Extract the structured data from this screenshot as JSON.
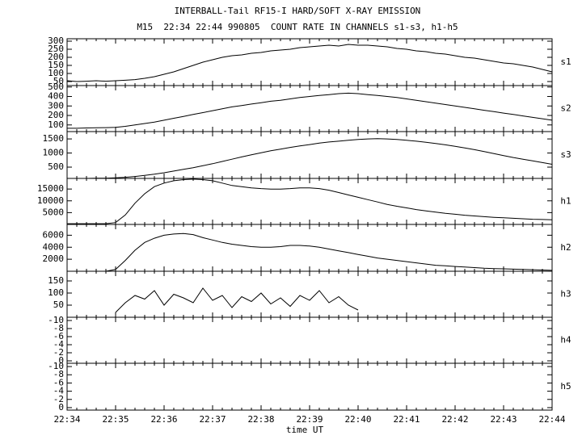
{
  "title": "INTERBALL-Tail RF15-I HARD/SOFT X-RAY EMISSION",
  "subtitle": "M15  22:34 22:44 990805  COUNT RATE IN CHANNELS s1-s3, h1-h5",
  "xlabel": "time UT",
  "categories": [
    "22:34",
    null,
    null,
    null,
    null,
    "22:35",
    null,
    null,
    null,
    null,
    "22:36",
    null,
    null,
    null,
    null,
    "22:37",
    null,
    null,
    null,
    null,
    "22:38",
    null,
    null,
    null,
    null,
    "22:39",
    null,
    null,
    null,
    null,
    "22:40",
    null,
    null,
    null,
    null,
    "22:41",
    null,
    null,
    null,
    null,
    "22:42",
    null,
    null,
    null,
    null,
    "22:43",
    null,
    null,
    null,
    null,
    "22:44"
  ],
  "chart_data": [
    {
      "type": "line",
      "label": "s1",
      "color": "#000000",
      "ylim": [
        25,
        315
      ],
      "yticks": [
        50,
        100,
        150,
        200,
        250,
        300
      ],
      "values": [
        55,
        50,
        52,
        55,
        52,
        55,
        58,
        62,
        70,
        80,
        95,
        110,
        130,
        150,
        170,
        185,
        200,
        210,
        215,
        225,
        230,
        240,
        245,
        250,
        260,
        265,
        270,
        275,
        270,
        280,
        275,
        275,
        270,
        265,
        255,
        250,
        240,
        235,
        225,
        220,
        210,
        200,
        195,
        185,
        175,
        165,
        160,
        150,
        140,
        125,
        110
      ]
    },
    {
      "type": "line",
      "label": "s2",
      "color": "#000000",
      "ylim": [
        30,
        515
      ],
      "yticks": [
        100,
        200,
        300,
        400,
        500
      ],
      "values": [
        65,
        65,
        68,
        70,
        72,
        75,
        85,
        100,
        115,
        130,
        150,
        170,
        190,
        210,
        230,
        250,
        270,
        290,
        305,
        320,
        335,
        350,
        360,
        375,
        390,
        400,
        410,
        420,
        430,
        435,
        430,
        420,
        410,
        400,
        390,
        375,
        360,
        345,
        330,
        315,
        300,
        285,
        270,
        255,
        240,
        225,
        210,
        195,
        180,
        165,
        150
      ]
    },
    {
      "type": "line",
      "label": "s3",
      "color": "#000000",
      "ylim": [
        100,
        1760
      ],
      "yticks": [
        500,
        1000,
        1500
      ],
      "values": [
        100,
        100,
        100,
        105,
        110,
        120,
        140,
        170,
        210,
        250,
        300,
        360,
        420,
        480,
        550,
        620,
        700,
        780,
        860,
        940,
        1010,
        1080,
        1140,
        1200,
        1250,
        1300,
        1350,
        1390,
        1420,
        1450,
        1480,
        1500,
        1510,
        1500,
        1480,
        1450,
        1420,
        1380,
        1340,
        1290,
        1240,
        1180,
        1120,
        1050,
        980,
        910,
        840,
        780,
        720,
        660,
        600
      ]
    },
    {
      "type": "line",
      "label": "h1",
      "color": "#000000",
      "ylim": [
        0,
        19500
      ],
      "yticks": [
        5000,
        10000,
        15000
      ],
      "values": [
        300,
        300,
        300,
        300,
        300,
        800,
        4000,
        9000,
        13000,
        16000,
        17500,
        18500,
        19000,
        19200,
        19000,
        18500,
        17500,
        16500,
        16000,
        15500,
        15200,
        15000,
        15000,
        15200,
        15500,
        15500,
        15200,
        14500,
        13500,
        12500,
        11500,
        10500,
        9500,
        8500,
        7700,
        7000,
        6300,
        5700,
        5200,
        4700,
        4300,
        3900,
        3600,
        3300,
        3000,
        2800,
        2600,
        2400,
        2200,
        2100,
        2000
      ]
    },
    {
      "type": "line",
      "label": "h2",
      "color": "#000000",
      "ylim": [
        0,
        7800
      ],
      "yticks": [
        2000,
        4000,
        6000
      ],
      "values": [
        0,
        0,
        0,
        0,
        0,
        300,
        1800,
        3500,
        4800,
        5500,
        6000,
        6200,
        6300,
        6100,
        5600,
        5200,
        4800,
        4500,
        4300,
        4100,
        4000,
        4000,
        4100,
        4300,
        4300,
        4200,
        4000,
        3700,
        3400,
        3100,
        2800,
        2500,
        2200,
        2000,
        1800,
        1600,
        1400,
        1200,
        1000,
        900,
        800,
        700,
        600,
        500,
        450,
        400,
        350,
        300,
        250,
        200,
        150
      ]
    },
    {
      "type": "line",
      "label": "h3",
      "color": "#000000",
      "ylim": [
        0,
        190
      ],
      "yticks": [
        50,
        100,
        150
      ],
      "values": [
        null,
        null,
        null,
        null,
        null,
        20,
        60,
        90,
        75,
        110,
        50,
        95,
        80,
        60,
        120,
        70,
        90,
        40,
        85,
        65,
        100,
        55,
        80,
        45,
        90,
        70,
        110,
        60,
        85,
        50,
        30,
        null,
        null,
        null,
        null,
        null,
        null,
        null,
        null,
        null,
        null,
        null,
        null,
        null,
        null,
        null,
        null,
        null,
        null,
        null,
        null
      ]
    },
    {
      "type": "line",
      "label": "h4",
      "color": "#000000",
      "ylim": [
        0.6,
        -10.8
      ],
      "yticks": [
        -10,
        -8,
        -6,
        -4,
        -2,
        0
      ]
    },
    {
      "type": "line",
      "label": "h5",
      "color": "#000000",
      "ylim": [
        0.6,
        -10.8
      ],
      "yticks": [
        -10,
        -8,
        -6,
        -4,
        -2,
        0
      ]
    }
  ]
}
